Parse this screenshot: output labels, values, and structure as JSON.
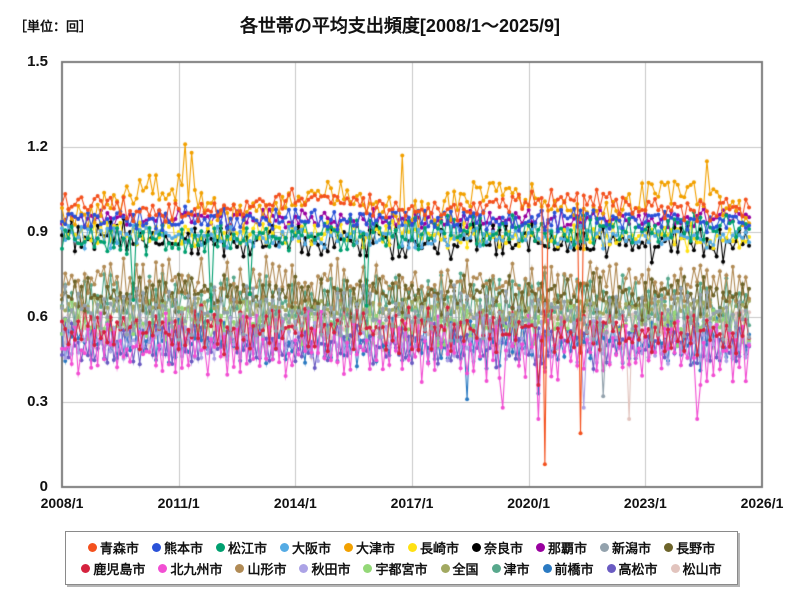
{
  "header": {
    "unit_label": "［単位：回］",
    "title": "各世帯の平均支出頻度[2008/1～2025/9]"
  },
  "frame": {
    "plot_border_color": "#7b7b7b",
    "grid_color": "#c8c8c8",
    "background": "#ffffff"
  },
  "chart_data": {
    "type": "line",
    "title": "各世帯の平均支出頻度[2008/1～2025/9]",
    "unit": "回",
    "x_start": "2008/1",
    "x_end": "2025/9",
    "months_total": 213,
    "x_axis_span_months": 216,
    "ylim": [
      0,
      1.5
    ],
    "grid": true,
    "legend_position": "bottom",
    "marker": "dot",
    "y_ticks": [
      {
        "label": "1.5",
        "value": 1.5
      },
      {
        "label": "1.2",
        "value": 1.2
      },
      {
        "label": "0.9",
        "value": 0.9
      },
      {
        "label": "0.6",
        "value": 0.6
      },
      {
        "label": "0.3",
        "value": 0.3
      },
      {
        "label": "0",
        "value": 0.0
      }
    ],
    "x_ticks": [
      {
        "label": "2008/1",
        "month": 0
      },
      {
        "label": "2011/1",
        "month": 36
      },
      {
        "label": "2014/1",
        "month": 72
      },
      {
        "label": "2017/1",
        "month": 108
      },
      {
        "label": "2020/1",
        "month": 144
      },
      {
        "label": "2023/1",
        "month": 180
      },
      {
        "label": "2026/1",
        "month": 216
      }
    ],
    "points_encoding": "monthly values 2008/1-2025/9 synthesized as base + trend*(m/213) + wave + noise + alternating saw; 'features' are exact [month_index, value] points read from the image",
    "series": [
      {
        "id": "aomori",
        "name": "青森市",
        "color": "#f4511e",
        "base": 0.99,
        "noise": 0.03,
        "saw": 0.012,
        "trend": 0.01,
        "wave": {
          "amp": 0.025,
          "period": 80,
          "phase": 2.0
        },
        "features": [
          [
            149,
            0.08
          ],
          [
            160,
            0.19
          ]
        ]
      },
      {
        "id": "kumamoto",
        "name": "熊本市",
        "color": "#2a52d8",
        "base": 0.95,
        "noise": 0.032,
        "saw": 0.012,
        "trend": -0.01,
        "features": []
      },
      {
        "id": "matsue",
        "name": "松江市",
        "color": "#00a070",
        "base": 0.87,
        "noise": 0.04,
        "saw": 0.022,
        "trend": 0.05,
        "features": [
          [
            22,
            0.66
          ],
          [
            46,
            0.62
          ],
          [
            58,
            0.68
          ],
          [
            94,
            0.64
          ]
        ]
      },
      {
        "id": "osaka",
        "name": "大阪市",
        "color": "#55abe4",
        "base": 0.885,
        "noise": 0.032,
        "saw": 0.014,
        "trend": 0.0,
        "features": []
      },
      {
        "id": "otsu",
        "name": "大津市",
        "color": "#f2a100",
        "base": 1.0,
        "noise": 0.045,
        "saw": 0.015,
        "trend": 0.01,
        "wave": {
          "amp": 0.05,
          "period": 54,
          "phase": 4.6
        },
        "features": [
          [
            36,
            1.1
          ],
          [
            38,
            1.21
          ],
          [
            40,
            1.18
          ],
          [
            105,
            1.17
          ],
          [
            199,
            1.15
          ]
        ]
      },
      {
        "id": "nagasaki",
        "name": "長崎市",
        "color": "#ffe113",
        "base": 0.9,
        "noise": 0.035,
        "saw": 0.018,
        "trend": -0.02,
        "features": []
      },
      {
        "id": "nara",
        "name": "奈良市",
        "color": "#000000",
        "base": 0.88,
        "noise": 0.045,
        "saw": 0.026,
        "trend": -0.02,
        "features": []
      },
      {
        "id": "naha",
        "name": "那覇市",
        "color": "#99009f",
        "base": 0.945,
        "noise": 0.028,
        "saw": 0.01,
        "trend": 0.0,
        "features": []
      },
      {
        "id": "niigata",
        "name": "新潟市",
        "color": "#93a2ad",
        "base": 0.62,
        "noise": 0.05,
        "saw": 0.055,
        "trend": -0.02,
        "features": [
          [
            167,
            0.32
          ]
        ]
      },
      {
        "id": "nagano",
        "name": "長野市",
        "color": "#6d642a",
        "base": 0.68,
        "noise": 0.045,
        "saw": 0.042,
        "trend": -0.01,
        "features": []
      },
      {
        "id": "kagoshima",
        "name": "鹿児島市",
        "color": "#d5223e",
        "base": 0.56,
        "noise": 0.048,
        "saw": 0.045,
        "trend": -0.01,
        "features": [
          [
            147,
            0.36
          ]
        ]
      },
      {
        "id": "kitakyushu",
        "name": "北九州市",
        "color": "#f24fd3",
        "base": 0.5,
        "noise": 0.055,
        "saw": 0.08,
        "trend": -0.02,
        "features": [
          [
            136,
            0.28
          ],
          [
            147,
            0.24
          ],
          [
            196,
            0.24
          ]
        ]
      },
      {
        "id": "yamagata",
        "name": "山形市",
        "color": "#b18b55",
        "base": 0.72,
        "noise": 0.05,
        "saw": 0.052,
        "trend": -0.01,
        "features": []
      },
      {
        "id": "akita",
        "name": "秋田市",
        "color": "#aca3e6",
        "base": 0.53,
        "noise": 0.045,
        "saw": 0.05,
        "trend": -0.02,
        "features": [
          [
            161,
            0.28
          ]
        ]
      },
      {
        "id": "utsunomiya",
        "name": "宇都宮市",
        "color": "#94d878",
        "base": 0.58,
        "noise": 0.045,
        "saw": 0.048,
        "trend": -0.01,
        "features": []
      },
      {
        "id": "zenkoku",
        "name": "全国",
        "color": "#a2a961",
        "base": 0.63,
        "noise": 0.025,
        "saw": 0.03,
        "trend": -0.01,
        "features": []
      },
      {
        "id": "tsu",
        "name": "津市",
        "color": "#58a88c",
        "base": 0.66,
        "noise": 0.05,
        "saw": 0.065,
        "trend": -0.02,
        "features": []
      },
      {
        "id": "maebashi",
        "name": "前橋市",
        "color": "#2b7ac2",
        "base": 0.52,
        "noise": 0.048,
        "saw": 0.058,
        "trend": -0.01,
        "features": [
          [
            125,
            0.31
          ],
          [
            147,
            0.33
          ]
        ]
      },
      {
        "id": "takamatsu",
        "name": "高松市",
        "color": "#6a5bc2",
        "base": 0.51,
        "noise": 0.045,
        "saw": 0.048,
        "trend": -0.01,
        "features": []
      },
      {
        "id": "matsuyama",
        "name": "松山市",
        "color": "#e2c4be",
        "base": 0.56,
        "noise": 0.048,
        "saw": 0.052,
        "trend": -0.02,
        "features": [
          [
            175,
            0.24
          ]
        ]
      }
    ]
  }
}
